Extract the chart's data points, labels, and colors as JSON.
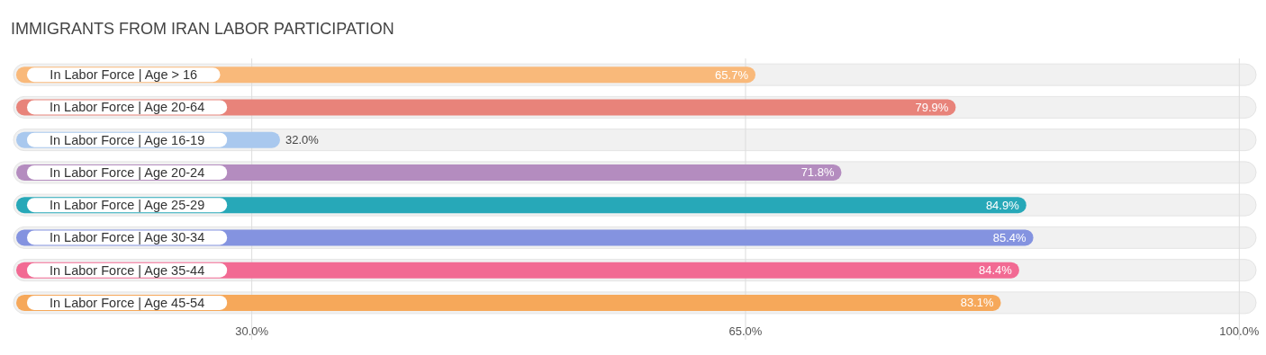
{
  "chart_data": {
    "type": "bar",
    "orientation": "horizontal",
    "title": "IMMIGRANTS FROM IRAN LABOR PARTICIPATION",
    "categories": [
      "In Labor Force | Age > 16",
      "In Labor Force | Age 20-64",
      "In Labor Force | Age 16-19",
      "In Labor Force | Age 20-24",
      "In Labor Force | Age 25-29",
      "In Labor Force | Age 30-34",
      "In Labor Force | Age 35-44",
      "In Labor Force | Age 45-54"
    ],
    "values": [
      65.7,
      79.9,
      32.0,
      71.8,
      84.9,
      85.4,
      84.4,
      83.1
    ],
    "value_labels": [
      "65.7%",
      "79.9%",
      "32.0%",
      "71.8%",
      "84.9%",
      "85.4%",
      "84.4%",
      "83.1%"
    ],
    "colors": [
      "#f9b97a",
      "#e8837a",
      "#a9c8ee",
      "#b48cbf",
      "#27a8b8",
      "#8493e0",
      "#f26a93",
      "#f6a85a"
    ],
    "xlim": [
      13.3,
      101
    ],
    "xticks": [
      {
        "value": 30,
        "label": "30.0%"
      },
      {
        "value": 65,
        "label": "65.0%"
      },
      {
        "value": 100,
        "label": "100.0%"
      }
    ],
    "grid": "x"
  }
}
